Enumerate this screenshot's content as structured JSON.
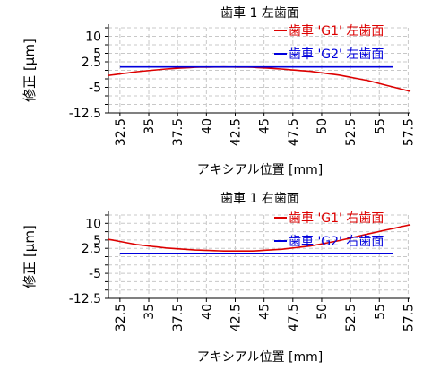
{
  "chart_data": [
    {
      "type": "line",
      "title": "歯車 1 左歯面",
      "xlabel": "アキシアル位置 [mm]",
      "ylabel": "修正 [µm]",
      "xlim": [
        31.5,
        57.7
      ],
      "ylim": [
        -12.5,
        12.5
      ],
      "xticks": [
        "32.5",
        "35",
        "37.5",
        "40",
        "42.5",
        "45",
        "47.5",
        "50",
        "52.5",
        "55",
        "57.5"
      ],
      "yticks": [
        "10",
        "5",
        "2.5",
        "-5",
        "-12.5"
      ],
      "ytick_values": [
        10,
        5,
        2.5,
        -5,
        -12.5
      ],
      "grid": true,
      "legend_position": "top-right",
      "series": [
        {
          "name": "歯車 'G1' 左歯面",
          "color": "#dd0000",
          "x": [
            31.5,
            34,
            36.5,
            39,
            41.5,
            44,
            46.5,
            49,
            51.5,
            54,
            57.7
          ],
          "y": [
            -1.5,
            -0.4,
            0.4,
            0.9,
            1.0,
            0.9,
            0.4,
            -0.3,
            -1.4,
            -3.0,
            -6.2
          ]
        },
        {
          "name": "歯車 'G2' 左歯面",
          "color": "#0000dd",
          "x": [
            32.5,
            56.2
          ],
          "y": [
            1.0,
            1.0
          ]
        }
      ]
    },
    {
      "type": "line",
      "title": "歯車 1 右歯面",
      "xlabel": "アキシアル位置 [mm]",
      "ylabel": "修正 [µm]",
      "xlim": [
        31.5,
        57.7
      ],
      "ylim": [
        -12.5,
        12.5
      ],
      "xticks": [
        "32.5",
        "35",
        "37.5",
        "40",
        "42.5",
        "45",
        "47.5",
        "50",
        "52.5",
        "55",
        "57.5"
      ],
      "yticks": [
        "10",
        "5",
        "2.5",
        "-5",
        "-12.5"
      ],
      "ytick_values": [
        10,
        5,
        2.5,
        -5,
        -12.5
      ],
      "grid": true,
      "legend_position": "top-right",
      "series": [
        {
          "name": "歯車 'G1' 右歯面",
          "color": "#dd0000",
          "x": [
            31.5,
            34,
            36.5,
            39,
            41.5,
            44,
            46.5,
            49,
            51.5,
            54,
            57.7
          ],
          "y": [
            5.2,
            3.6,
            2.6,
            2.0,
            1.7,
            1.7,
            2.2,
            3.2,
            4.8,
            6.8,
            9.6
          ]
        },
        {
          "name": "歯車 'G2' 右歯面",
          "color": "#0000dd",
          "x": [
            32.5,
            56.2
          ],
          "y": [
            1.0,
            1.0
          ]
        }
      ]
    }
  ]
}
